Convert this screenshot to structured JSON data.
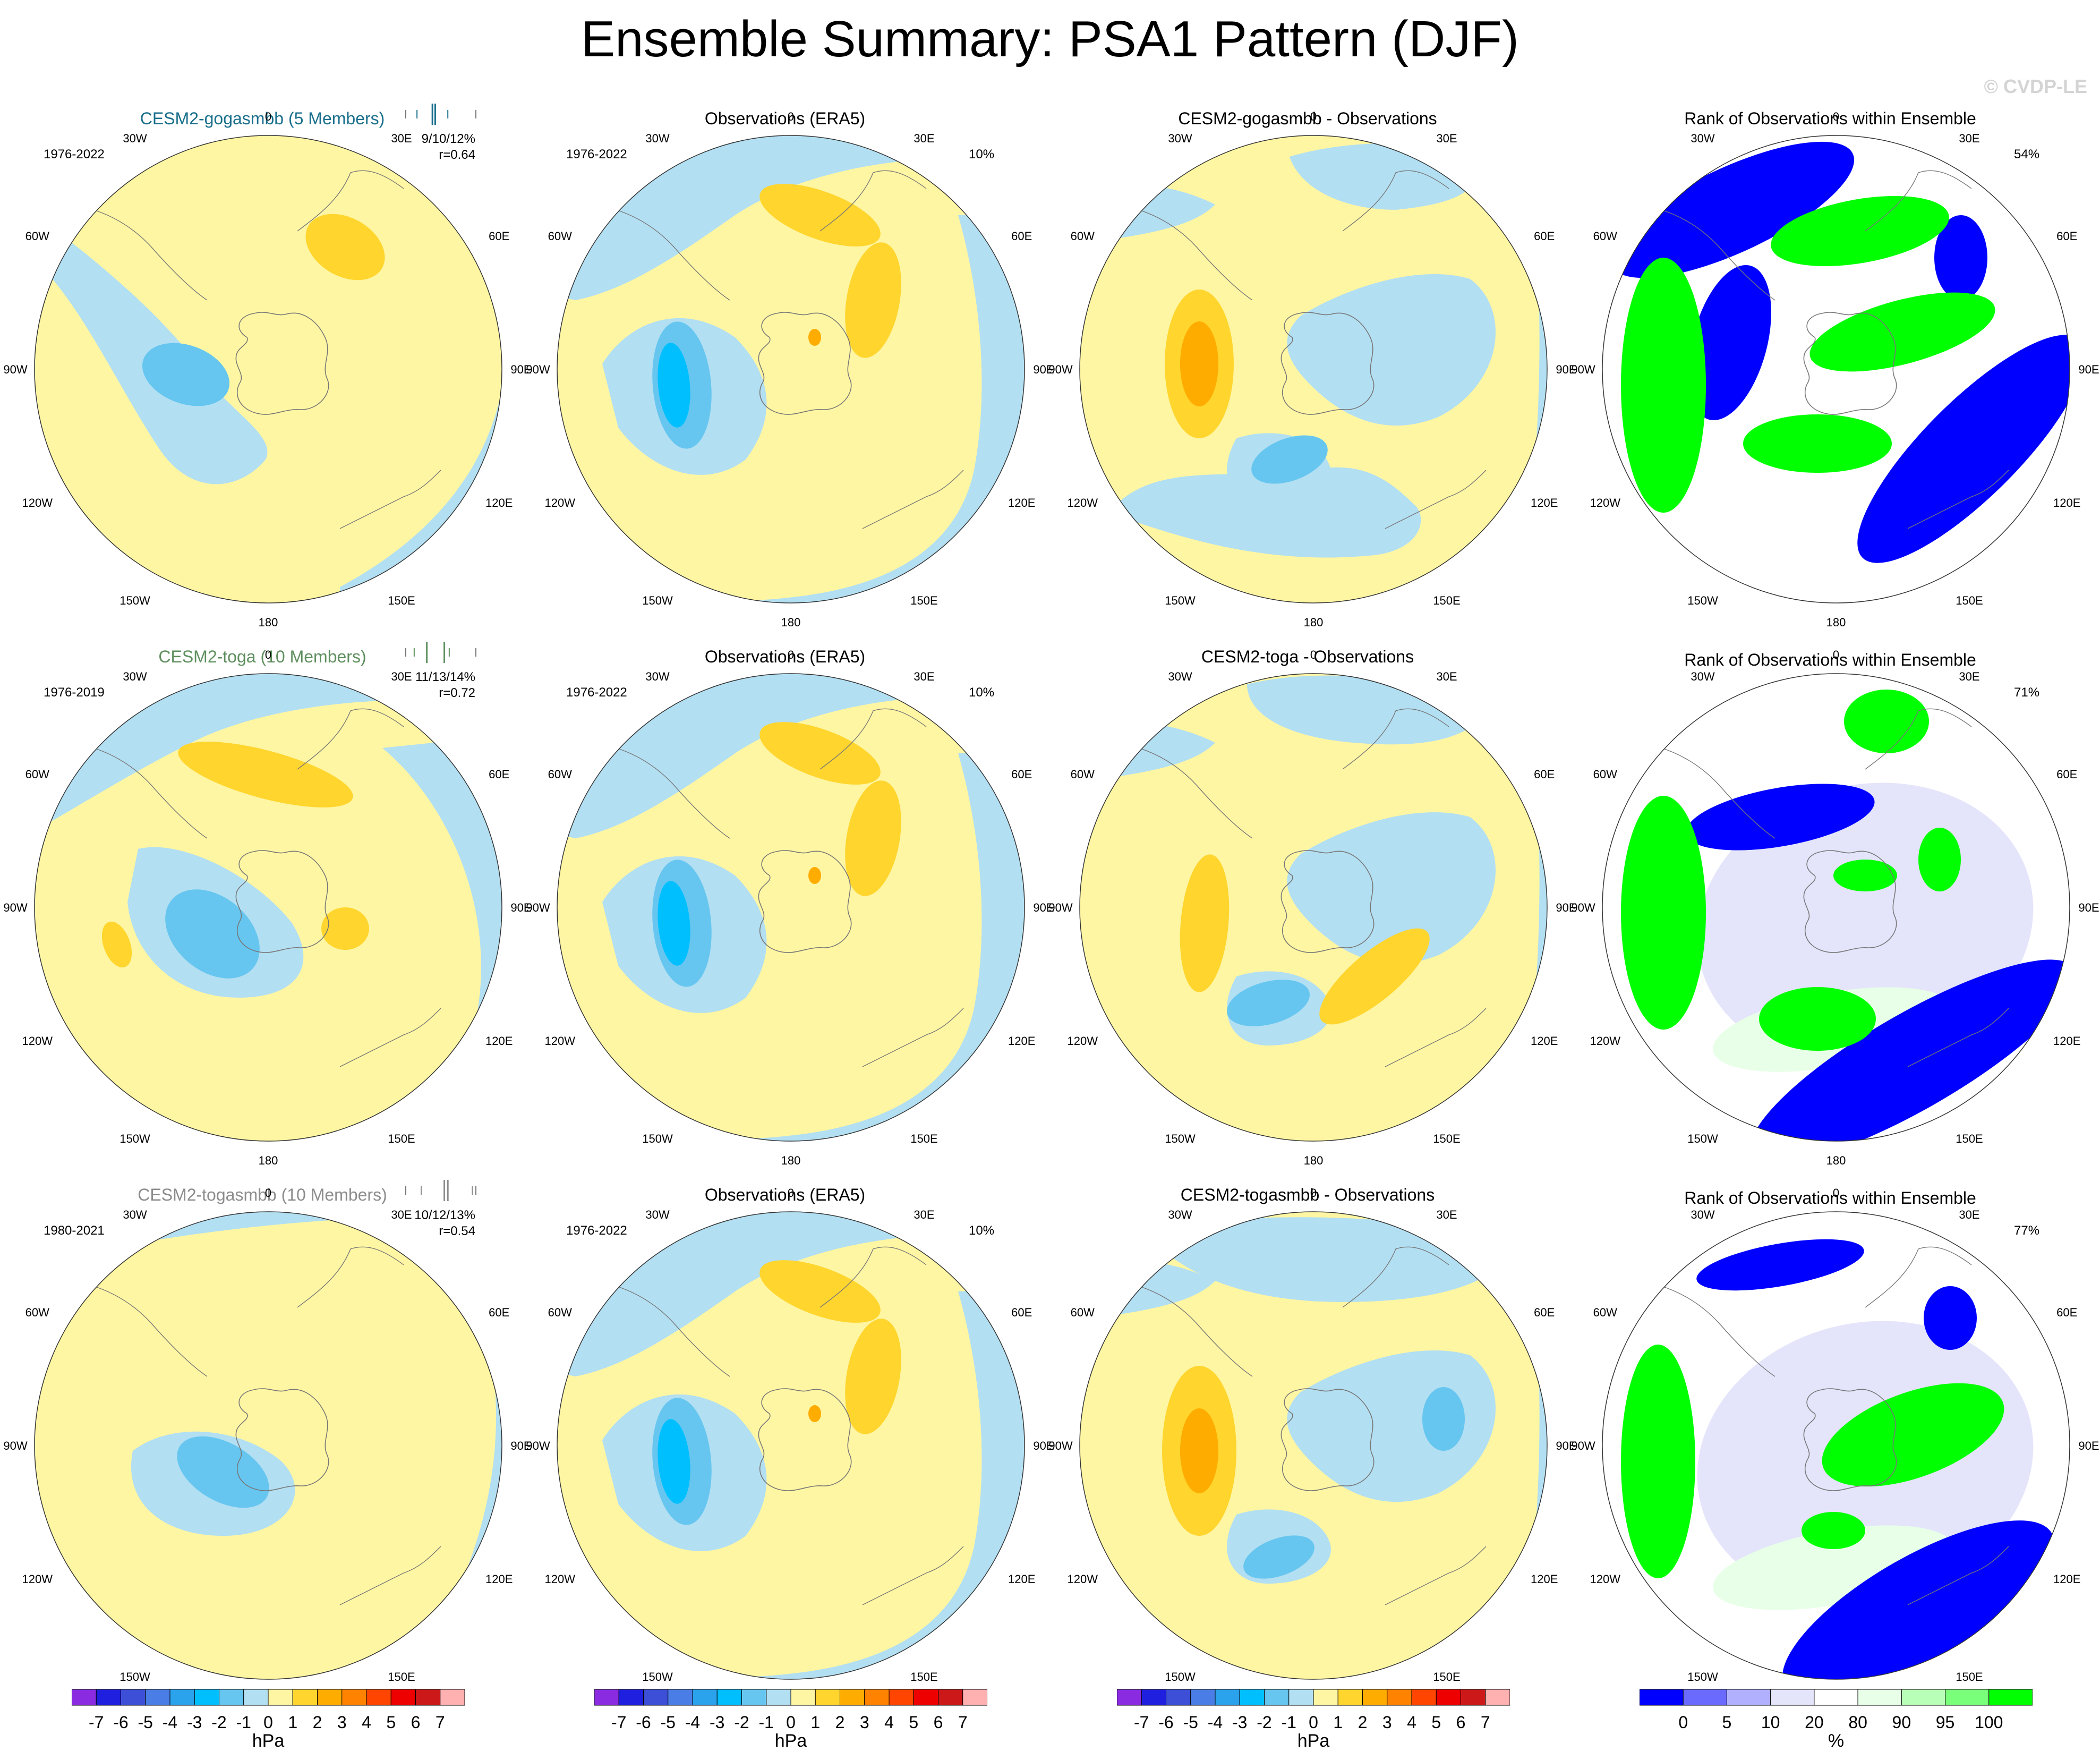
{
  "page": {
    "title": "Ensemble Summary: PSA1 Pattern (DJF)",
    "watermark": "© CVDP-LE"
  },
  "longitude_labels": [
    "0",
    "30E",
    "60E",
    "90E",
    "120E",
    "150E",
    "180",
    "150W",
    "120W",
    "90W",
    "60W",
    "30W"
  ],
  "rows": [
    {
      "model": {
        "title": "CESM2-gogasmbb (5 Members)",
        "title_color": "#1a6f8c",
        "period": "1976-2022",
        "rms": "9/10/12%",
        "corr": "r=0.64",
        "tick_color": "#1a6f8c",
        "ticks": [
          0.0,
          0.16,
          0.38,
          0.42,
          0.6,
          1.0
        ]
      },
      "obs": {
        "title": "Observations (ERA5)",
        "period": "1976-2022",
        "pct": "10%"
      },
      "diff": {
        "title": "CESM2-gogasmbb - Observations"
      },
      "rank": {
        "title": "Rank of Observations within Ensemble",
        "pct": "54%"
      }
    },
    {
      "model": {
        "title": "CESM2-toga (10 Members)",
        "title_color": "#5e8f5e",
        "period": "1976-2019",
        "rms": "11/13/14%",
        "corr": "r=0.72",
        "tick_color": "#5e8f5e",
        "ticks": [
          0.0,
          0.12,
          0.3,
          0.55,
          0.62,
          1.0
        ]
      },
      "obs": {
        "title": "Observations (ERA5)",
        "period": "1976-2022",
        "pct": "10%"
      },
      "diff": {
        "title": "CESM2-toga - Observations"
      },
      "rank": {
        "title": "Rank of Observations within Ensemble",
        "pct": "71%"
      }
    },
    {
      "model": {
        "title": "CESM2-togasmbb (10 Members)",
        "title_color": "#8c8c8c",
        "period": "1980-2021",
        "rms": "10/12/13%",
        "corr": "r=0.54",
        "tick_color": "#8c8c8c",
        "ticks": [
          0.0,
          0.22,
          0.55,
          0.6,
          0.95,
          1.0
        ]
      },
      "obs": {
        "title": "Observations (ERA5)",
        "period": "1976-2022",
        "pct": "10%"
      },
      "diff": {
        "title": "CESM2-togasmbb - Observations"
      },
      "rank": {
        "title": "Rank of Observations within Ensemble",
        "pct": "77%"
      }
    }
  ],
  "colorbars": {
    "hpa": {
      "colors": [
        "#8a2be2",
        "#1f1fe0",
        "#3c4fd6",
        "#4a7ee6",
        "#2aa2ec",
        "#00bfff",
        "#66c6f0",
        "#b3dff2",
        "#fff6a3",
        "#ffd52e",
        "#ffac00",
        "#ff8200",
        "#ff4500",
        "#ee0000",
        "#cc1818",
        "#ffb0b0"
      ],
      "labels": [
        "-7",
        "-6",
        "-5",
        "-4",
        "-3",
        "-2",
        "-1",
        "0",
        "1",
        "2",
        "3",
        "4",
        "5",
        "6",
        "7"
      ],
      "unit": "hPa"
    },
    "rank": {
      "colors": [
        "#0000ff",
        "#6a6aff",
        "#b0b0ff",
        "#e4e4fb",
        "#ffffff",
        "#e8ffe8",
        "#b8ffb8",
        "#7aff7a",
        "#00ff00"
      ],
      "labels": [
        "0",
        "5",
        "10",
        "20",
        "80",
        "90",
        "95",
        "100"
      ],
      "unit": "%"
    }
  },
  "colors": {
    "light_blue": "#b3dff2",
    "mid_blue": "#66c6f0",
    "deep_blue": "#00bfff",
    "light_yellow": "#fff6a3",
    "gold": "#ffd52e",
    "orange": "#ffac00",
    "rank_blue": "#0000ff",
    "rank_green": "#00ff00",
    "rank_pale_blue": "#e4e4fb",
    "rank_pale_green": "#e8ffe8"
  }
}
